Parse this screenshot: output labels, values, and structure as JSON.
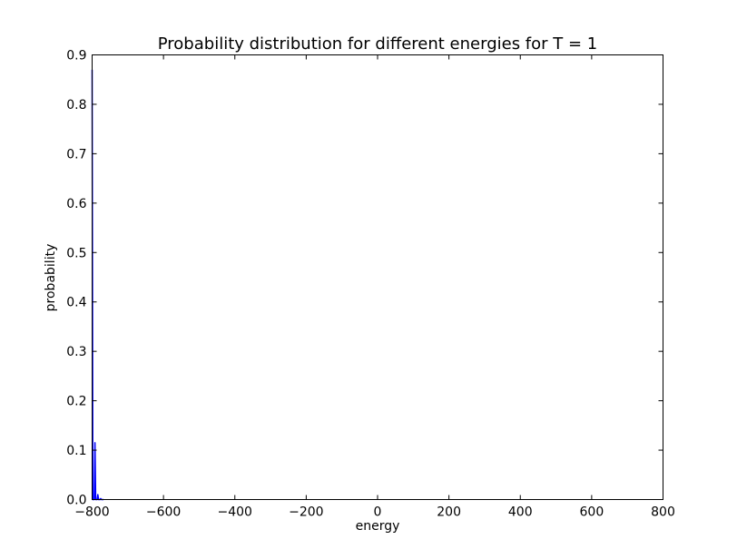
{
  "chart_data": {
    "type": "line",
    "title": "Probability distribution for different energies for T = 1",
    "xlabel": "energy",
    "ylabel": "probability",
    "xlim": [
      -800,
      800
    ],
    "ylim": [
      0,
      0.9
    ],
    "xticks": [
      -800,
      -600,
      -400,
      -200,
      0,
      200,
      400,
      600,
      800
    ],
    "xtick_labels": [
      "−800",
      "−600",
      "−400",
      "−200",
      "0",
      "200",
      "400",
      "600",
      "800"
    ],
    "yticks": [
      0.0,
      0.1,
      0.2,
      0.3,
      0.4,
      0.5,
      0.6,
      0.7,
      0.8,
      0.9
    ],
    "ytick_labels": [
      "0.0",
      "0.1",
      "0.2",
      "0.3",
      "0.4",
      "0.5",
      "0.6",
      "0.7",
      "0.8",
      "0.9"
    ],
    "grid": false,
    "series": [
      {
        "color": "#0000ff",
        "x": [
          -800,
          -798,
          -796,
          -794,
          -792,
          -790,
          -788,
          -786,
          -784,
          -782,
          -780,
          -778,
          -776,
          -774,
          -772,
          -770,
          -768
        ],
        "y": [
          0.87,
          0.0,
          0.0,
          0.0,
          0.115,
          0.0,
          0.0,
          0.0,
          0.01,
          0.0,
          0.0,
          0.0,
          0.002,
          0.0,
          0.0,
          0.0,
          0.0
        ]
      }
    ]
  }
}
